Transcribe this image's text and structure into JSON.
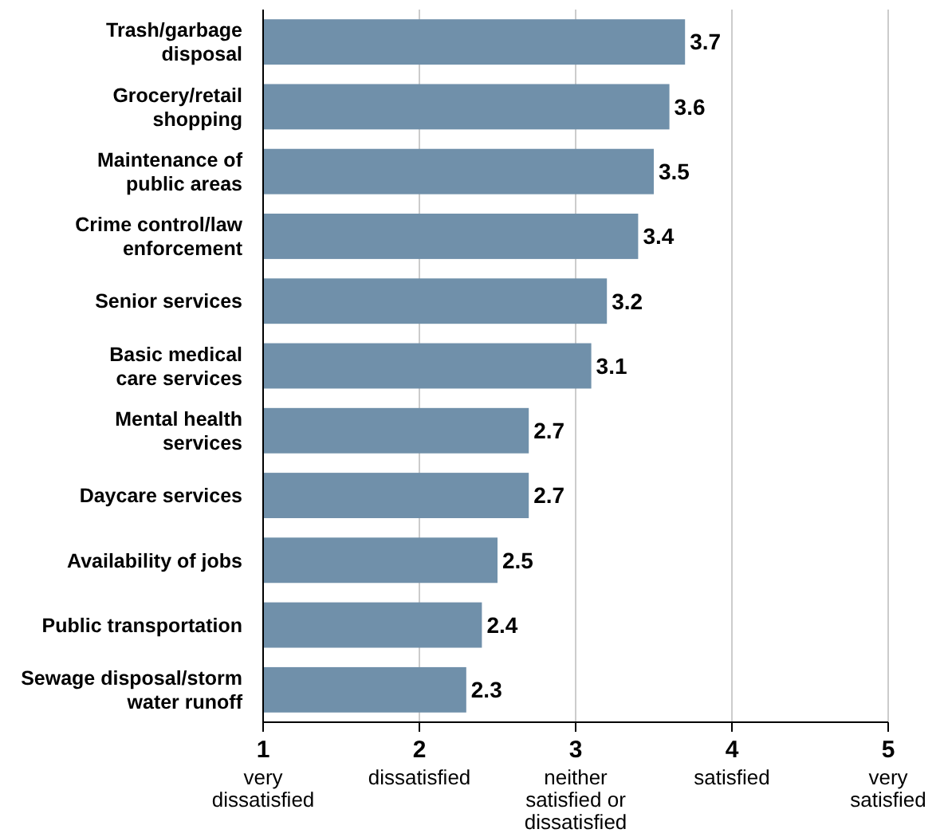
{
  "chart_data": {
    "type": "bar",
    "orientation": "horizontal",
    "categories": [
      "Trash/garbage\ndisposal",
      "Grocery/retail\nshopping",
      "Maintenance of\npublic areas",
      "Crime control/law\nenforcement",
      "Senior services",
      "Basic medical\ncare services",
      "Mental health\nservices",
      "Daycare services",
      "Availability of jobs",
      "Public transportation",
      "Sewage disposal/storm\nwater runoff"
    ],
    "values": [
      3.7,
      3.6,
      3.5,
      3.4,
      3.2,
      3.1,
      2.7,
      2.7,
      2.5,
      2.4,
      2.3
    ],
    "color": "#7090aa",
    "xlim": [
      1,
      5
    ],
    "xticks": [
      {
        "value": 1,
        "label": "1\nvery\ndissatisfied"
      },
      {
        "value": 2,
        "label": "2\ndissatisfied"
      },
      {
        "value": 3,
        "label": "3\nneither\nsatisfied or\ndissatisfied"
      },
      {
        "value": 4,
        "label": "4\nsatisfied"
      },
      {
        "value": 5,
        "label": "5\nvery\nsatisfied"
      }
    ],
    "grid": "x",
    "data_labels": true
  }
}
